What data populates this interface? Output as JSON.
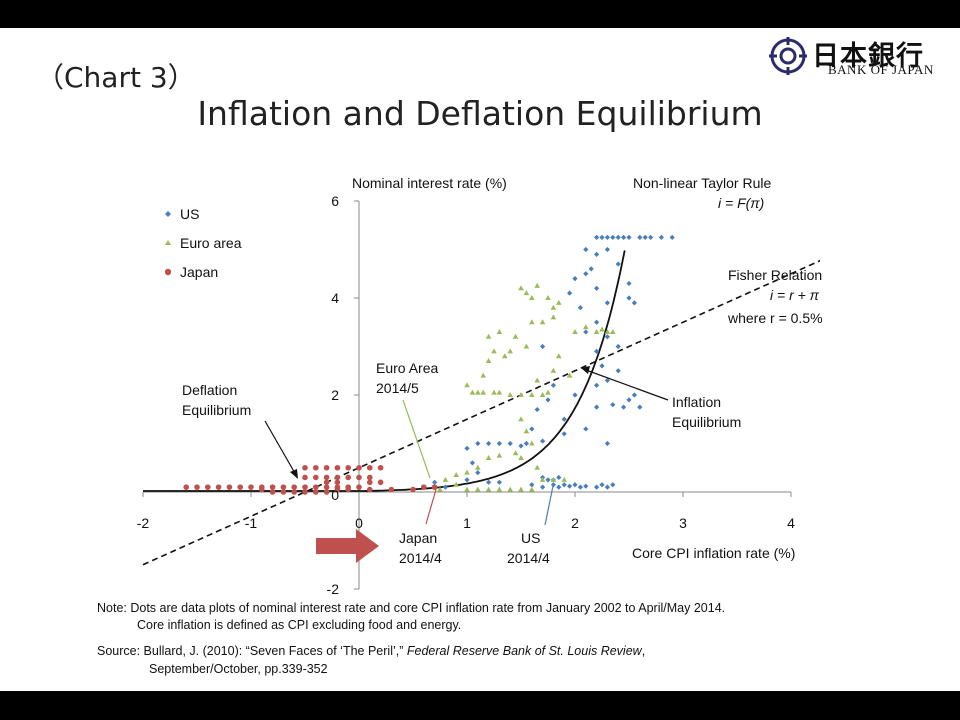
{
  "slide": {
    "chart_label": "（Chart 3）",
    "title": "Inflation and Deflation Equilibrium",
    "logo": {
      "jp": "日本銀行",
      "en": "BANK OF JAPAN"
    },
    "note_line1": "Note: Dots are data plots of nominal interest rate and core CPI inflation rate from January 2002 to April/May 2014.",
    "note_line2": "Core inflation is defined as CPI excluding food and energy.",
    "source_prefix": "Source: Bullard, J. (2010): “Seven Faces of ‘The Peril’,” ",
    "source_journal": "Federal Reserve Bank of St. Louis Review",
    "source_suffix": ",",
    "source_line2": "September/October,  pp.339-352"
  },
  "chart_data": {
    "type": "scatter",
    "xlabel": "Core CPI inflation rate (%)",
    "ylabel": "Nominal interest rate (%)",
    "xlim": [
      -2,
      4
    ],
    "ylim": [
      -2,
      6
    ],
    "x_ticks": [
      "-2",
      "-1",
      "0",
      "1",
      "2",
      "3",
      "4"
    ],
    "y_ticks": [
      "6",
      "4",
      "2",
      "0",
      "-2"
    ],
    "legend": {
      "placement": "top-left",
      "items": [
        {
          "name": "US",
          "color": "#4a7ebb",
          "marker": "diamond"
        },
        {
          "name": "Euro area",
          "color": "#9bbb59",
          "marker": "triangle"
        },
        {
          "name": "Japan",
          "color": "#c0504d",
          "marker": "circle"
        }
      ]
    },
    "lines": {
      "taylor": {
        "label1": "Non-linear Taylor Rule",
        "label2": "i = F(π)"
      },
      "fisher": {
        "label1": "Fisher Relation",
        "label2": "i = r + π",
        "label3": "where r = 0.5%",
        "r": 0.5
      }
    },
    "annotations": {
      "deflation": [
        "Deflation",
        "Equilibrium"
      ],
      "inflation": [
        "Inflation",
        "Equilibrium"
      ],
      "euro": [
        "Euro Area",
        "2014/5"
      ],
      "japan": [
        "Japan",
        "2014/4"
      ],
      "us": [
        "US",
        "2014/4"
      ]
    },
    "series": [
      {
        "name": "US",
        "color": "#4a7ebb",
        "points": [
          [
            2.2,
            5.25
          ],
          [
            2.25,
            5.25
          ],
          [
            2.3,
            5.25
          ],
          [
            2.35,
            5.25
          ],
          [
            2.4,
            5.25
          ],
          [
            2.45,
            5.25
          ],
          [
            2.5,
            5.25
          ],
          [
            2.6,
            5.25
          ],
          [
            2.65,
            5.25
          ],
          [
            2.7,
            5.25
          ],
          [
            2.8,
            5.25
          ],
          [
            2.9,
            5.25
          ],
          [
            2.1,
            5.0
          ],
          [
            2.2,
            4.9
          ],
          [
            2.3,
            5.0
          ],
          [
            2.4,
            4.7
          ],
          [
            2.15,
            4.6
          ],
          [
            2.1,
            4.5
          ],
          [
            2.0,
            4.4
          ],
          [
            2.2,
            4.2
          ],
          [
            2.5,
            4.3
          ],
          [
            2.3,
            3.9
          ],
          [
            2.5,
            4.0
          ],
          [
            2.55,
            3.9
          ],
          [
            1.95,
            4.1
          ],
          [
            2.05,
            3.8
          ],
          [
            2.2,
            3.5
          ],
          [
            2.1,
            3.3
          ],
          [
            2.3,
            3.2
          ],
          [
            2.4,
            3.0
          ],
          [
            2.2,
            2.9
          ],
          [
            2.25,
            2.6
          ],
          [
            2.4,
            2.5
          ],
          [
            2.3,
            2.3
          ],
          [
            2.0,
            2.0
          ],
          [
            2.2,
            2.2
          ],
          [
            2.35,
            1.8
          ],
          [
            2.45,
            1.75
          ],
          [
            2.5,
            1.9
          ],
          [
            2.6,
            1.75
          ],
          [
            2.55,
            2.0
          ],
          [
            2.2,
            1.75
          ],
          [
            2.3,
            1.0
          ],
          [
            2.1,
            1.3
          ],
          [
            1.9,
            1.5
          ],
          [
            1.7,
            3.0
          ],
          [
            1.8,
            2.2
          ],
          [
            1.75,
            1.9
          ],
          [
            1.65,
            1.7
          ],
          [
            1.9,
            1.2
          ],
          [
            1.7,
            1.05
          ],
          [
            1.6,
            1.3
          ],
          [
            1.55,
            1.0
          ],
          [
            1.5,
            0.95
          ],
          [
            1.4,
            1.0
          ],
          [
            1.3,
            1.0
          ],
          [
            1.2,
            1.0
          ],
          [
            1.1,
            1.0
          ],
          [
            1.0,
            0.9
          ],
          [
            1.05,
            0.6
          ],
          [
            1.1,
            0.4
          ],
          [
            1.0,
            0.25
          ],
          [
            1.2,
            0.2
          ],
          [
            1.3,
            0.2
          ],
          [
            1.6,
            0.15
          ],
          [
            1.7,
            0.1
          ],
          [
            1.8,
            0.15
          ],
          [
            1.85,
            0.1
          ],
          [
            1.9,
            0.15
          ],
          [
            1.95,
            0.12
          ],
          [
            2.0,
            0.15
          ],
          [
            2.05,
            0.1
          ],
          [
            2.1,
            0.12
          ],
          [
            2.2,
            0.1
          ],
          [
            2.25,
            0.15
          ],
          [
            2.3,
            0.1
          ],
          [
            2.35,
            0.15
          ],
          [
            1.7,
            0.3
          ],
          [
            1.75,
            0.25
          ],
          [
            1.8,
            0.25
          ],
          [
            1.85,
            0.3
          ],
          [
            0.7,
            0.2
          ],
          [
            0.8,
            0.1
          ]
        ]
      },
      {
        "name": "Euro area",
        "color": "#9bbb59",
        "points": [
          [
            1.5,
            4.2
          ],
          [
            1.55,
            4.1
          ],
          [
            1.6,
            4.0
          ],
          [
            1.65,
            4.25
          ],
          [
            1.75,
            4.0
          ],
          [
            1.8,
            3.8
          ],
          [
            1.85,
            3.9
          ],
          [
            1.8,
            3.6
          ],
          [
            1.6,
            3.5
          ],
          [
            1.7,
            3.5
          ],
          [
            1.55,
            3.0
          ],
          [
            1.45,
            3.2
          ],
          [
            1.4,
            2.9
          ],
          [
            1.35,
            2.8
          ],
          [
            1.3,
            3.3
          ],
          [
            1.2,
            3.2
          ],
          [
            1.25,
            2.9
          ],
          [
            1.15,
            2.4
          ],
          [
            1.2,
            2.7
          ],
          [
            1.0,
            2.2
          ],
          [
            1.05,
            2.05
          ],
          [
            1.1,
            2.05
          ],
          [
            1.15,
            2.05
          ],
          [
            1.25,
            2.05
          ],
          [
            1.3,
            2.05
          ],
          [
            1.4,
            2.0
          ],
          [
            1.5,
            2.0
          ],
          [
            1.6,
            2.0
          ],
          [
            1.7,
            2.0
          ],
          [
            1.75,
            2.05
          ],
          [
            1.65,
            2.3
          ],
          [
            1.8,
            2.5
          ],
          [
            1.85,
            2.8
          ],
          [
            1.95,
            2.4
          ],
          [
            2.0,
            3.3
          ],
          [
            2.1,
            3.4
          ],
          [
            2.2,
            3.3
          ],
          [
            2.25,
            3.35
          ],
          [
            2.3,
            3.3
          ],
          [
            2.35,
            3.3
          ],
          [
            1.5,
            1.5
          ],
          [
            1.55,
            1.25
          ],
          [
            1.6,
            1.0
          ],
          [
            1.45,
            0.8
          ],
          [
            1.3,
            0.75
          ],
          [
            1.2,
            0.7
          ],
          [
            1.1,
            0.5
          ],
          [
            1.0,
            0.4
          ],
          [
            0.9,
            0.35
          ],
          [
            0.8,
            0.25
          ],
          [
            0.9,
            0.15
          ],
          [
            1.0,
            0.05
          ],
          [
            1.1,
            0.05
          ],
          [
            1.2,
            0.05
          ],
          [
            1.3,
            0.05
          ],
          [
            1.4,
            0.05
          ],
          [
            1.5,
            0.05
          ],
          [
            1.6,
            0.05
          ],
          [
            1.7,
            0.25
          ],
          [
            1.8,
            0.25
          ],
          [
            1.9,
            0.25
          ],
          [
            1.65,
            0.5
          ],
          [
            1.5,
            0.7
          ],
          [
            0.75,
            0.05
          ]
        ]
      },
      {
        "name": "Japan",
        "color": "#c0504d",
        "points": [
          [
            -1.6,
            0.1
          ],
          [
            -1.5,
            0.1
          ],
          [
            -1.4,
            0.1
          ],
          [
            -1.3,
            0.1
          ],
          [
            -1.2,
            0.1
          ],
          [
            -1.1,
            0.1
          ],
          [
            -1.0,
            0.1
          ],
          [
            -0.9,
            0.1
          ],
          [
            -0.8,
            0.1
          ],
          [
            -0.7,
            0.1
          ],
          [
            -0.6,
            0.1
          ],
          [
            -0.5,
            0.1
          ],
          [
            -0.4,
            0.1
          ],
          [
            -0.3,
            0.1
          ],
          [
            -0.2,
            0.1
          ],
          [
            -0.1,
            0.1
          ],
          [
            0.0,
            0.1
          ],
          [
            -0.9,
            0.05
          ],
          [
            -0.8,
            0.0
          ],
          [
            -0.7,
            0.0
          ],
          [
            -0.6,
            0.0
          ],
          [
            -0.5,
            0.0
          ],
          [
            -0.4,
            0.0
          ],
          [
            -0.3,
            0.0
          ],
          [
            -0.2,
            0.05
          ],
          [
            -0.1,
            0.05
          ],
          [
            0.1,
            0.05
          ],
          [
            0.3,
            0.05
          ],
          [
            -0.5,
            0.3
          ],
          [
            -0.4,
            0.3
          ],
          [
            -0.3,
            0.3
          ],
          [
            -0.2,
            0.3
          ],
          [
            -0.1,
            0.3
          ],
          [
            0.0,
            0.3
          ],
          [
            0.1,
            0.3
          ],
          [
            -0.5,
            0.5
          ],
          [
            -0.4,
            0.5
          ],
          [
            -0.3,
            0.5
          ],
          [
            -0.2,
            0.5
          ],
          [
            -0.1,
            0.5
          ],
          [
            0.0,
            0.5
          ],
          [
            0.1,
            0.5
          ],
          [
            0.2,
            0.5
          ],
          [
            -0.3,
            0.2
          ],
          [
            -0.2,
            0.2
          ],
          [
            0.1,
            0.2
          ],
          [
            0.2,
            0.2
          ],
          [
            0.6,
            0.1
          ],
          [
            0.7,
            0.1
          ],
          [
            0.5,
            0.05
          ]
        ]
      }
    ]
  }
}
